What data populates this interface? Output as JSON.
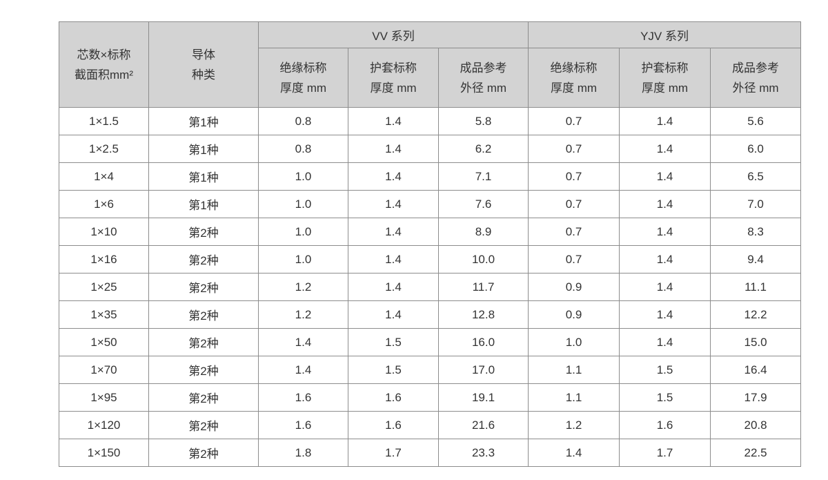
{
  "colors": {
    "header_bg": "#d3d3d3",
    "border": "#8c8c8c",
    "text": "#333333",
    "page_bg": "#ffffff"
  },
  "table": {
    "col1_header": {
      "line1": "芯数×标称",
      "line2": "截面积mm²"
    },
    "col2_header": {
      "line1": "导体",
      "line2": "种类"
    },
    "vv_group_header": "VV 系列",
    "yjv_group_header": "YJV 系列",
    "vv_sub_headers": [
      {
        "line1": "绝缘标称",
        "line2": "厚度 mm"
      },
      {
        "line1": "护套标称",
        "line2": "厚度 mm"
      },
      {
        "line1": "成品参考",
        "line2": "外径 mm"
      }
    ],
    "yjv_sub_headers": [
      {
        "line1": "绝缘标称",
        "line2": "厚度 mm"
      },
      {
        "line1": "护套标称",
        "line2": "厚度 mm"
      },
      {
        "line1": "成品参考",
        "line2": "外径 mm"
      }
    ],
    "rows": [
      [
        "1×1.5",
        "第1种",
        "0.8",
        "1.4",
        "5.8",
        "0.7",
        "1.4",
        "5.6"
      ],
      [
        "1×2.5",
        "第1种",
        "0.8",
        "1.4",
        "6.2",
        "0.7",
        "1.4",
        "6.0"
      ],
      [
        "1×4",
        "第1种",
        "1.0",
        "1.4",
        "7.1",
        "0.7",
        "1.4",
        "6.5"
      ],
      [
        "1×6",
        "第1种",
        "1.0",
        "1.4",
        "7.6",
        "0.7",
        "1.4",
        "7.0"
      ],
      [
        "1×10",
        "第2种",
        "1.0",
        "1.4",
        "8.9",
        "0.7",
        "1.4",
        "8.3"
      ],
      [
        "1×16",
        "第2种",
        "1.0",
        "1.4",
        "10.0",
        "0.7",
        "1.4",
        "9.4"
      ],
      [
        "1×25",
        "第2种",
        "1.2",
        "1.4",
        "11.7",
        "0.9",
        "1.4",
        "11.1"
      ],
      [
        "1×35",
        "第2种",
        "1.2",
        "1.4",
        "12.8",
        "0.9",
        "1.4",
        "12.2"
      ],
      [
        "1×50",
        "第2种",
        "1.4",
        "1.5",
        "16.0",
        "1.0",
        "1.4",
        "15.0"
      ],
      [
        "1×70",
        "第2种",
        "1.4",
        "1.5",
        "17.0",
        "1.1",
        "1.5",
        "16.4"
      ],
      [
        "1×95",
        "第2种",
        "1.6",
        "1.6",
        "19.1",
        "1.1",
        "1.5",
        "17.9"
      ],
      [
        "1×120",
        "第2种",
        "1.6",
        "1.6",
        "21.6",
        "1.2",
        "1.6",
        "20.8"
      ],
      [
        "1×150",
        "第2种",
        "1.8",
        "1.7",
        "23.3",
        "1.4",
        "1.7",
        "22.5"
      ]
    ]
  }
}
